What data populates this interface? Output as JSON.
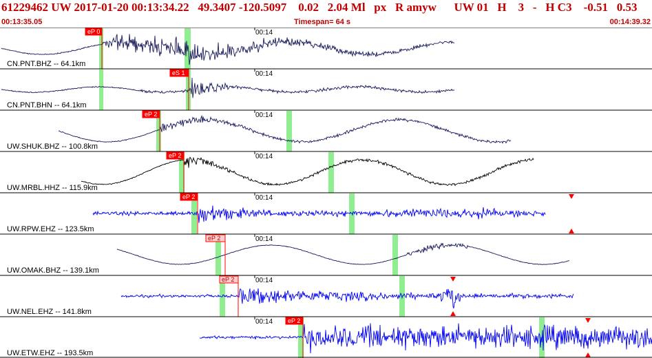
{
  "header": {
    "title": "61229462 UW 2017-01-20 00:13:34.22   49.3407 -120.5097    0.02   2.04 Ml   px   R amyw      UW 01   H    3   -   H C3    -0.51   0.53",
    "start_time": "00:13:35.05",
    "timespan": "Timespan=  64 s",
    "end_time": "00:14:39.32"
  },
  "colors": {
    "title": "#c00000",
    "pick": "#ff0000",
    "window": "#90ee90",
    "trace_short": "#1a1a5a",
    "trace_broad": "#000000",
    "trace_hf": "#0000ee"
  },
  "traces": [
    {
      "label": "CN.PNT.BHZ -- 64.1km",
      "time_mark": "00:14",
      "pick_label": "eP 0",
      "color_key": "trace_short",
      "pick_style": "solid"
    },
    {
      "label": "CN.PNT.BHN -- 64.1km",
      "time_mark": "00:14",
      "pick_label": "eS 1",
      "color_key": "trace_short",
      "pick_style": "solid"
    },
    {
      "label": "UW.SHUK.BHZ -- 100.8km",
      "time_mark": "00:14",
      "pick_label": "eP 2",
      "color_key": "trace_short",
      "pick_style": "solid"
    },
    {
      "label": "UW.MRBL.HHZ -- 115.9km",
      "time_mark": "00:14",
      "pick_label": "eP 2",
      "color_key": "trace_broad",
      "pick_style": "solid"
    },
    {
      "label": "UW.RPW.EHZ -- 123.5km",
      "time_mark": "00:14",
      "pick_label": "eP 2",
      "color_key": "trace_hf",
      "pick_style": "solid"
    },
    {
      "label": "UW.OMAK.BHZ -- 139.1km",
      "time_mark": "00:14",
      "pick_label": "eP 2",
      "color_key": "trace_short",
      "pick_style": "hollow"
    },
    {
      "label": "UW.NEL.EHZ -- 141.8km",
      "time_mark": "00:14",
      "pick_label": "eP 2",
      "color_key": "trace_hf",
      "pick_style": "hollow"
    },
    {
      "label": "UW.ETW.EHZ -- 193.5km",
      "time_mark": "00:14",
      "pick_label": "eP 2",
      "color_key": "trace_hf",
      "pick_style": "solid"
    }
  ]
}
